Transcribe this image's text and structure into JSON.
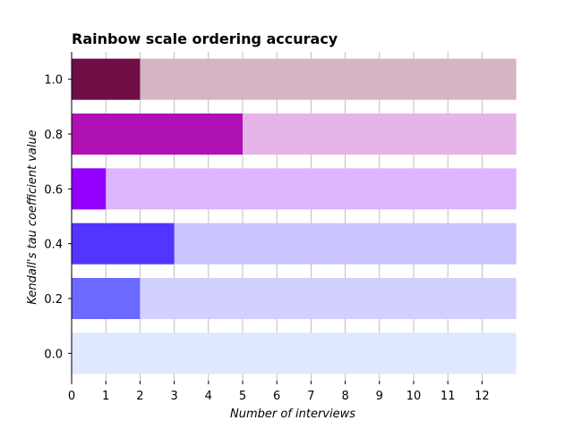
{
  "chart_data": {
    "type": "bar",
    "orientation": "horizontal",
    "title": "Rainbow scale ordering accuracy",
    "xlabel": "Number of interviews",
    "ylabel": "Kendall's tau coefficient value",
    "xlim": [
      0,
      13
    ],
    "x_ticks": [
      0,
      1,
      2,
      3,
      4,
      5,
      6,
      7,
      8,
      9,
      10,
      11,
      12
    ],
    "categories": [
      "0.0",
      "0.2",
      "0.4",
      "0.6",
      "0.8",
      "1.0"
    ],
    "values": [
      0,
      2,
      3,
      1,
      5,
      2
    ],
    "background_track_max": 13,
    "bar_colors": [
      "#dde8ff",
      "#6b69ff",
      "#5236ff",
      "#9400ff",
      "#b011b4",
      "#700e47"
    ],
    "track_colors": [
      "#dfe8ff",
      "#d1d0ff",
      "#c9c3ff",
      "#deb5ff",
      "#e6b4e6",
      "#d5b4c6"
    ],
    "grid": "vertical",
    "legend": "none"
  }
}
